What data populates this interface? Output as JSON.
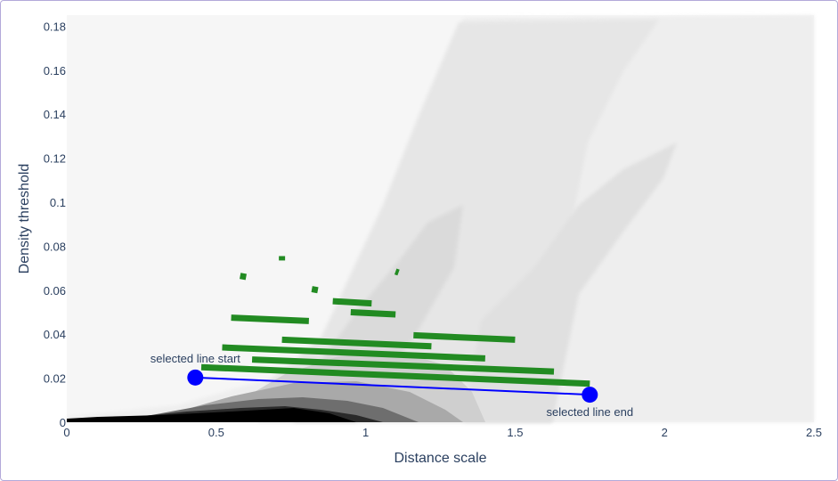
{
  "chart_data": {
    "type": "heatmap",
    "xlabel": "Distance scale",
    "ylabel": "Density threshold",
    "xlim": [
      0,
      2.5
    ],
    "ylim": [
      0,
      0.185
    ],
    "x_ticks": [
      0,
      0.5,
      1,
      1.5,
      2,
      2.5
    ],
    "x_tick_labels": [
      "0",
      "0.5",
      "1",
      "1.5",
      "2",
      "2.5"
    ],
    "y_ticks": [
      0,
      0.02,
      0.04,
      0.06,
      0.08,
      0.1,
      0.12,
      0.14,
      0.16,
      0.18
    ],
    "y_tick_labels": [
      "0",
      "0.02",
      "0.04",
      "0.06",
      "0.08",
      "0.1",
      "0.12",
      "0.14",
      "0.16",
      "0.18"
    ],
    "grid": false,
    "colors": {
      "segments": "#228b22",
      "selected_line": "#0000ff",
      "text": "#2a3f5f"
    },
    "segments": [
      {
        "x0": 0.72,
        "y0": 0.0755,
        "x1": 0.72,
        "y1": 0.0735
      },
      {
        "x0": 0.58,
        "y0": 0.0665,
        "x1": 0.6,
        "y1": 0.066
      },
      {
        "x0": 1.1,
        "y0": 0.0685,
        "x1": 1.11,
        "y1": 0.068
      },
      {
        "x0": 0.82,
        "y0": 0.0605,
        "x1": 0.84,
        "y1": 0.06
      },
      {
        "x0": 0.89,
        "y0": 0.055,
        "x1": 1.02,
        "y1": 0.054
      },
      {
        "x0": 0.95,
        "y0": 0.05,
        "x1": 1.1,
        "y1": 0.049
      },
      {
        "x0": 0.55,
        "y0": 0.0475,
        "x1": 0.81,
        "y1": 0.046
      },
      {
        "x0": 1.16,
        "y0": 0.0395,
        "x1": 1.5,
        "y1": 0.0375
      },
      {
        "x0": 0.72,
        "y0": 0.0375,
        "x1": 1.22,
        "y1": 0.0345
      },
      {
        "x0": 0.52,
        "y0": 0.034,
        "x1": 1.4,
        "y1": 0.029
      },
      {
        "x0": 0.62,
        "y0": 0.0285,
        "x1": 1.63,
        "y1": 0.023
      },
      {
        "x0": 0.45,
        "y0": 0.025,
        "x1": 1.75,
        "y1": 0.0175
      }
    ],
    "selected_line": {
      "start": {
        "x": 0.43,
        "y": 0.0203,
        "label": "selected line start"
      },
      "end": {
        "x": 1.75,
        "y": 0.0125,
        "label": "selected line end"
      }
    }
  }
}
